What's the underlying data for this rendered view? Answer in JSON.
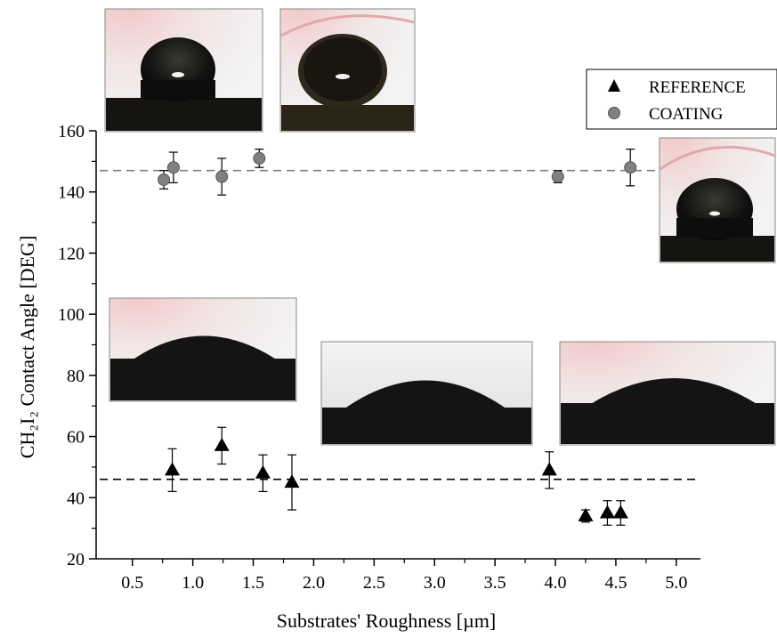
{
  "chart_data": {
    "type": "scatter",
    "xlabel": "Substrates' Roughness [µm]",
    "ylabel": "CH₂I₂ Contact Angle [DEG]",
    "xlim": [
      0.2,
      5.2
    ],
    "ylim": [
      20,
      160
    ],
    "x_ticks": [
      0.5,
      1.0,
      1.5,
      2.0,
      2.5,
      3.0,
      3.5,
      4.0,
      4.5,
      5.0
    ],
    "x_tick_labels": [
      "0.5",
      "1.0",
      "1.5",
      "2.0",
      "2.5",
      "3.0",
      "3.5",
      "4.0",
      "4.5",
      "5.0"
    ],
    "y_ticks": [
      20,
      40,
      60,
      80,
      100,
      120,
      140,
      160
    ],
    "y_tick_labels": [
      "20",
      "40",
      "60",
      "80",
      "100",
      "120",
      "140",
      "160"
    ],
    "legend_position": "top-right",
    "series": [
      {
        "name": "REFERENCE",
        "marker": "triangle",
        "color": "#000000",
        "points": [
          {
            "x": 0.83,
            "y": 49,
            "err": 7
          },
          {
            "x": 1.24,
            "y": 57,
            "err": 6
          },
          {
            "x": 1.58,
            "y": 48,
            "err": 6
          },
          {
            "x": 1.82,
            "y": 45,
            "err": 9
          },
          {
            "x": 3.95,
            "y": 49,
            "err": 6
          },
          {
            "x": 4.25,
            "y": 34,
            "err": 2
          },
          {
            "x": 4.43,
            "y": 35,
            "err": 4
          },
          {
            "x": 4.54,
            "y": 35,
            "err": 4
          }
        ],
        "mean_line": 46
      },
      {
        "name": "COATING",
        "marker": "circle",
        "color": "#808080",
        "points": [
          {
            "x": 0.76,
            "y": 144,
            "err": 3
          },
          {
            "x": 0.84,
            "y": 148,
            "err": 5
          },
          {
            "x": 1.24,
            "y": 145,
            "err": 6
          },
          {
            "x": 1.55,
            "y": 151,
            "err": 3
          },
          {
            "x": 4.02,
            "y": 145,
            "err": 2
          },
          {
            "x": 4.62,
            "y": 148,
            "err": 6
          }
        ],
        "mean_line": 147
      }
    ],
    "inset_photos": [
      {
        "kind": "coating-drop",
        "shape": "spherical"
      },
      {
        "kind": "coating-drop",
        "shape": "spherical"
      },
      {
        "kind": "coating-drop",
        "shape": "spherical"
      },
      {
        "kind": "reference-drop",
        "shape": "flat"
      },
      {
        "kind": "reference-drop",
        "shape": "flat"
      },
      {
        "kind": "reference-drop",
        "shape": "flat"
      }
    ]
  }
}
